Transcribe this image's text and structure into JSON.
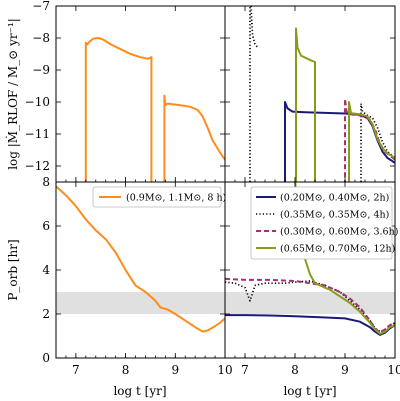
{
  "chart_data": {
    "type": "line",
    "shared_x": {
      "label": "log t [yr]",
      "ticks": [
        7,
        8,
        9,
        10
      ],
      "xlim": [
        6.6,
        10.0
      ]
    },
    "top_ylabel": "log |Ṁ_RLOF / M_⊙ yr⁻¹|",
    "top_ylim": [
      -12.5,
      -7.0
    ],
    "top_yticks": [
      -12,
      -11,
      -10,
      -9,
      -8,
      -7
    ],
    "bottom_ylabel": "P_orb [hr]",
    "bottom_ylim": [
      0,
      8
    ],
    "bottom_yticks": [
      0,
      2,
      4,
      6,
      8
    ],
    "period_gap_band": [
      2.0,
      3.0
    ],
    "panels": [
      {
        "id": "top-left",
        "series": [
          {
            "name": "(0.9M⊙, 1.1M⊙, 8 h)",
            "color": "#ff8c1a",
            "style": "solid",
            "segments": [
              [
                [
                  7.2,
                  -12.6
                ],
                [
                  7.2,
                  -8.15
                ],
                [
                  7.23,
                  -8.2
                ],
                [
                  7.27,
                  -8.12
                ],
                [
                  7.35,
                  -8.02
                ],
                [
                  7.45,
                  -8.0
                ],
                [
                  7.55,
                  -8.05
                ],
                [
                  7.7,
                  -8.2
                ],
                [
                  7.9,
                  -8.35
                ],
                [
                  8.1,
                  -8.5
                ],
                [
                  8.3,
                  -8.6
                ],
                [
                  8.45,
                  -8.65
                ],
                [
                  8.52,
                  -8.6
                ],
                [
                  8.52,
                  -12.6
                ]
              ],
              [
                [
                  8.78,
                  -12.6
                ],
                [
                  8.78,
                  -9.8
                ],
                [
                  8.8,
                  -10.1
                ],
                [
                  8.85,
                  -10.05
                ],
                [
                  9.1,
                  -10.1
                ],
                [
                  9.3,
                  -10.15
                ],
                [
                  9.45,
                  -10.25
                ],
                [
                  9.55,
                  -10.45
                ],
                [
                  9.65,
                  -10.8
                ],
                [
                  9.75,
                  -11.2
                ],
                [
                  9.85,
                  -11.45
                ],
                [
                  9.95,
                  -11.7
                ],
                [
                  10.0,
                  -11.8
                ]
              ]
            ]
          }
        ]
      },
      {
        "id": "top-right",
        "series": [
          {
            "name": "(0.20M⊙, 0.40M⊙, 2h)",
            "color": "#1a1a7a",
            "style": "solid",
            "segments": [
              [
                [
                  7.8,
                  -12.6
                ],
                [
                  7.8,
                  -10.0
                ],
                [
                  7.85,
                  -10.2
                ],
                [
                  7.95,
                  -10.3
                ],
                [
                  8.2,
                  -10.32
                ],
                [
                  8.6,
                  -10.34
                ],
                [
                  9.0,
                  -10.36
                ],
                [
                  9.3,
                  -10.4
                ],
                [
                  9.45,
                  -10.5
                ],
                [
                  9.55,
                  -10.75
                ],
                [
                  9.65,
                  -11.2
                ],
                [
                  9.75,
                  -11.55
                ],
                [
                  9.85,
                  -11.75
                ],
                [
                  10.0,
                  -11.9
                ]
              ]
            ]
          },
          {
            "name": "(0.35M⊙, 0.35M⊙, 4h)",
            "color": "#000000",
            "style": "dotted",
            "segments": [
              [
                [
                  7.1,
                  -12.6
                ],
                [
                  7.1,
                  -7.0
                ]
              ],
              [
                [
                  7.12,
                  -7.0
                ],
                [
                  7.15,
                  -7.9
                ],
                [
                  7.2,
                  -8.2
                ],
                [
                  7.26,
                  -8.3
                ]
              ],
              [
                [
                  9.32,
                  -12.6
                ],
                [
                  9.32,
                  -10.05
                ],
                [
                  9.35,
                  -10.3
                ],
                [
                  9.45,
                  -10.42
                ],
                [
                  9.55,
                  -10.5
                ],
                [
                  9.65,
                  -10.8
                ],
                [
                  9.75,
                  -11.25
                ],
                [
                  9.85,
                  -11.55
                ],
                [
                  10.0,
                  -11.75
                ]
              ]
            ]
          },
          {
            "name": "(0.30M⊙, 0.60M⊙, 3.6h)",
            "color": "#aa2d7a",
            "style": "dashed",
            "segments": [
              [
                [
                  9.0,
                  -12.6
                ],
                [
                  9.0,
                  -9.9
                ],
                [
                  9.03,
                  -10.3
                ],
                [
                  9.1,
                  -10.38
                ],
                [
                  9.3,
                  -10.42
                ],
                [
                  9.5,
                  -10.55
                ],
                [
                  9.6,
                  -10.85
                ],
                [
                  9.7,
                  -11.3
                ],
                [
                  9.8,
                  -11.55
                ],
                [
                  10.0,
                  -11.8
                ]
              ]
            ]
          },
          {
            "name": "(0.65M⊙, 0.70M⊙, 12h)",
            "color": "#8c9a1a",
            "style": "solid",
            "segments": [
              [
                [
                  8.02,
                  -12.6
                ],
                [
                  8.02,
                  -7.7
                ],
                [
                  8.05,
                  -8.3
                ],
                [
                  8.12,
                  -8.55
                ],
                [
                  8.25,
                  -8.65
                ],
                [
                  8.35,
                  -8.72
                ],
                [
                  8.4,
                  -8.75
                ],
                [
                  8.4,
                  -12.6
                ]
              ],
              [
                [
                  9.08,
                  -12.6
                ],
                [
                  9.08,
                  -10.0
                ],
                [
                  9.12,
                  -10.35
                ],
                [
                  9.3,
                  -10.38
                ],
                [
                  9.45,
                  -10.45
                ],
                [
                  9.55,
                  -10.7
                ],
                [
                  9.65,
                  -11.15
                ],
                [
                  9.75,
                  -11.45
                ],
                [
                  9.85,
                  -11.6
                ],
                [
                  10.0,
                  -11.75
                ]
              ]
            ]
          }
        ]
      },
      {
        "id": "bottom-left",
        "legend": [
          "(0.9M⊙, 1.1M⊙, 8 h)"
        ],
        "series": [
          {
            "name": "(0.9M⊙, 1.1M⊙, 8 h)",
            "color": "#ff8c1a",
            "style": "solid",
            "segments": [
              [
                [
                  6.6,
                  7.8
                ],
                [
                  6.8,
                  7.4
                ],
                [
                  7.0,
                  6.9
                ],
                [
                  7.2,
                  6.3
                ],
                [
                  7.4,
                  5.8
                ],
                [
                  7.6,
                  5.4
                ],
                [
                  7.8,
                  4.8
                ],
                [
                  8.0,
                  4.0
                ],
                [
                  8.2,
                  3.3
                ],
                [
                  8.4,
                  3.0
                ],
                [
                  8.6,
                  2.6
                ],
                [
                  8.7,
                  2.3
                ],
                [
                  8.85,
                  2.2
                ],
                [
                  9.0,
                  2.0
                ],
                [
                  9.2,
                  1.7
                ],
                [
                  9.4,
                  1.4
                ],
                [
                  9.55,
                  1.2
                ],
                [
                  9.65,
                  1.25
                ],
                [
                  9.8,
                  1.45
                ],
                [
                  9.9,
                  1.6
                ],
                [
                  10.0,
                  1.8
                ]
              ]
            ]
          }
        ]
      },
      {
        "id": "bottom-right",
        "legend": [
          "(0.20M⊙, 0.40M⊙, 2h)",
          "(0.35M⊙, 0.35M⊙, 4h)",
          "(0.30M⊙, 0.60M⊙, 3.6h)",
          "(0.65M⊙, 0.70M⊙, 12h)"
        ],
        "series": [
          {
            "name": "(0.20M⊙, 0.40M⊙, 2h)",
            "color": "#1a1a7a",
            "style": "solid",
            "segments": [
              [
                [
                  6.6,
                  1.95
                ],
                [
                  7.0,
                  1.95
                ],
                [
                  7.5,
                  1.93
                ],
                [
                  8.0,
                  1.9
                ],
                [
                  8.5,
                  1.85
                ],
                [
                  9.0,
                  1.8
                ],
                [
                  9.3,
                  1.65
                ],
                [
                  9.5,
                  1.4
                ],
                [
                  9.6,
                  1.2
                ],
                [
                  9.7,
                  1.05
                ],
                [
                  9.8,
                  1.15
                ],
                [
                  9.9,
                  1.35
                ],
                [
                  10.0,
                  1.5
                ]
              ]
            ]
          },
          {
            "name": "(0.35M⊙, 0.35M⊙, 4h)",
            "color": "#000000",
            "style": "dotted",
            "segments": [
              [
                [
                  6.6,
                  3.45
                ],
                [
                  6.8,
                  3.4
                ],
                [
                  7.0,
                  3.2
                ],
                [
                  7.1,
                  2.6
                ],
                [
                  7.2,
                  3.3
                ],
                [
                  7.4,
                  3.4
                ],
                [
                  7.8,
                  3.4
                ],
                [
                  8.0,
                  3.45
                ],
                [
                  8.3,
                  3.5
                ],
                [
                  8.6,
                  3.3
                ],
                [
                  8.9,
                  3.0
                ],
                [
                  9.1,
                  2.6
                ],
                [
                  9.3,
                  2.2
                ],
                [
                  9.5,
                  1.7
                ],
                [
                  9.6,
                  1.35
                ],
                [
                  9.7,
                  1.2
                ],
                [
                  9.8,
                  1.3
                ],
                [
                  9.9,
                  1.45
                ],
                [
                  10.0,
                  1.6
                ]
              ]
            ]
          },
          {
            "name": "(0.30M⊙, 0.60M⊙, 3.6h)",
            "color": "#aa2d7a",
            "style": "dashed",
            "segments": [
              [
                [
                  6.6,
                  3.6
                ],
                [
                  7.0,
                  3.55
                ],
                [
                  7.5,
                  3.55
                ],
                [
                  8.0,
                  3.5
                ],
                [
                  8.3,
                  3.4
                ],
                [
                  8.6,
                  3.3
                ],
                [
                  8.9,
                  3.0
                ],
                [
                  9.1,
                  2.7
                ],
                [
                  9.3,
                  2.3
                ],
                [
                  9.5,
                  1.7
                ],
                [
                  9.6,
                  1.35
                ],
                [
                  9.7,
                  1.15
                ],
                [
                  9.8,
                  1.3
                ],
                [
                  9.9,
                  1.5
                ],
                [
                  10.0,
                  1.6
                ]
              ]
            ]
          },
          {
            "name": "(0.65M⊙, 0.70M⊙, 12h)",
            "color": "#8c9a1a",
            "style": "solid",
            "segments": [
              [
                [
                  8.0,
                  8.2
                ],
                [
                  8.05,
                  6.5
                ],
                [
                  8.1,
                  5.5
                ],
                [
                  8.2,
                  4.5
                ],
                [
                  8.3,
                  3.8
                ],
                [
                  8.4,
                  3.4
                ],
                [
                  8.5,
                  3.3
                ],
                [
                  8.7,
                  3.1
                ],
                [
                  8.9,
                  2.8
                ],
                [
                  9.1,
                  2.5
                ],
                [
                  9.3,
                  2.1
                ],
                [
                  9.5,
                  1.6
                ],
                [
                  9.6,
                  1.3
                ],
                [
                  9.7,
                  1.1
                ],
                [
                  9.8,
                  1.2
                ],
                [
                  9.9,
                  1.4
                ],
                [
                  10.0,
                  1.5
                ]
              ]
            ]
          }
        ]
      }
    ]
  }
}
